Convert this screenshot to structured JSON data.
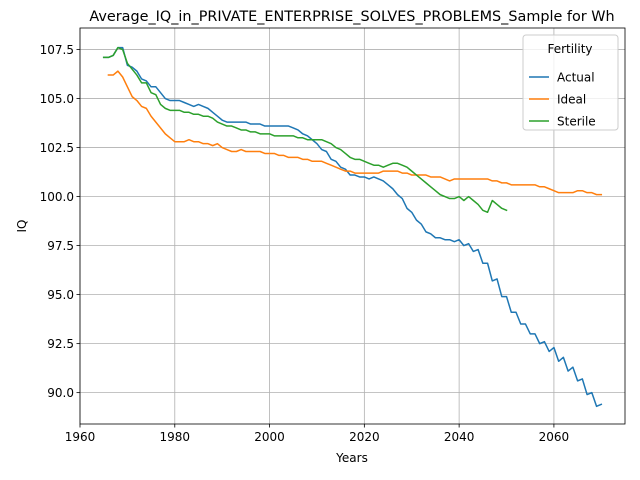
{
  "chart_data": {
    "type": "line",
    "title": "Average_IQ_in_PRIVATE_ENTERPRISE_SOLVES_PROBLEMS_Sample for Wh",
    "xlabel": "Years",
    "ylabel": "IQ",
    "xlim": [
      1960,
      2075
    ],
    "ylim": [
      88.4,
      108.6
    ],
    "xticks": [
      1960,
      1980,
      2000,
      2020,
      2040,
      2060
    ],
    "xtick_labels": [
      "1960",
      "1980",
      "2000",
      "2020",
      "2040",
      "2060"
    ],
    "yticks": [
      90.0,
      92.5,
      95.0,
      97.5,
      100.0,
      102.5,
      105.0,
      107.5
    ],
    "ytick_labels": [
      "90.0",
      "92.5",
      "95.0",
      "97.5",
      "100.0",
      "102.5",
      "105.0",
      "107.5"
    ],
    "grid": true,
    "legend": {
      "title": "Fertility",
      "placement": "top-right"
    },
    "series": [
      {
        "name": "Actual",
        "color": "#1f77b4",
        "x": [
          1965,
          1966,
          1967,
          1968,
          1969,
          1970,
          1971,
          1972,
          1973,
          1974,
          1975,
          1976,
          1977,
          1978,
          1979,
          1980,
          1981,
          1982,
          1983,
          1984,
          1985,
          1986,
          1987,
          1988,
          1989,
          1990,
          1991,
          1992,
          1993,
          1994,
          1995,
          1996,
          1997,
          1998,
          1999,
          2000,
          2001,
          2002,
          2003,
          2004,
          2005,
          2006,
          2007,
          2008,
          2009,
          2010,
          2011,
          2012,
          2013,
          2014,
          2015,
          2016,
          2017,
          2018,
          2019,
          2020,
          2021,
          2022,
          2023,
          2024,
          2025,
          2026,
          2027,
          2028,
          2029,
          2030,
          2031,
          2032,
          2033,
          2034,
          2035,
          2036,
          2037,
          2038,
          2039,
          2040,
          2041,
          2042,
          2043,
          2044,
          2045,
          2046,
          2047,
          2048,
          2049,
          2050,
          2051,
          2052,
          2053,
          2054,
          2055,
          2056,
          2057,
          2058,
          2059,
          2060,
          2061,
          2062,
          2063,
          2064,
          2065,
          2066,
          2067,
          2068,
          2069,
          2070
        ],
        "y": [
          107.1,
          107.1,
          107.2,
          107.6,
          107.6,
          106.7,
          106.6,
          106.4,
          106.0,
          105.9,
          105.6,
          105.6,
          105.3,
          105.0,
          104.9,
          104.9,
          104.9,
          104.8,
          104.7,
          104.6,
          104.7,
          104.6,
          104.5,
          104.3,
          104.1,
          103.9,
          103.8,
          103.8,
          103.8,
          103.8,
          103.8,
          103.7,
          103.7,
          103.7,
          103.6,
          103.6,
          103.6,
          103.6,
          103.6,
          103.6,
          103.5,
          103.4,
          103.2,
          103.1,
          102.9,
          102.7,
          102.4,
          102.3,
          101.9,
          101.8,
          101.5,
          101.4,
          101.1,
          101.1,
          101.0,
          101.0,
          100.9,
          101.0,
          100.9,
          100.8,
          100.6,
          100.4,
          100.1,
          99.9,
          99.4,
          99.2,
          98.8,
          98.6,
          98.2,
          98.1,
          97.9,
          97.9,
          97.8,
          97.8,
          97.7,
          97.8,
          97.5,
          97.6,
          97.2,
          97.3,
          96.6,
          96.6,
          95.7,
          95.8,
          94.9,
          94.9,
          94.1,
          94.1,
          93.5,
          93.5,
          93.0,
          93.0,
          92.5,
          92.6,
          92.1,
          92.3,
          91.6,
          91.8,
          91.1,
          91.3,
          90.6,
          90.7,
          89.9,
          90.0,
          89.3,
          89.4
        ]
      },
      {
        "name": "Ideal",
        "color": "#ff7f0e",
        "x": [
          1966,
          1967,
          1968,
          1969,
          1970,
          1971,
          1972,
          1973,
          1974,
          1975,
          1976,
          1977,
          1978,
          1979,
          1980,
          1981,
          1982,
          1983,
          1984,
          1985,
          1986,
          1987,
          1988,
          1989,
          1990,
          1991,
          1992,
          1993,
          1994,
          1995,
          1996,
          1997,
          1998,
          1999,
          2000,
          2001,
          2002,
          2003,
          2004,
          2005,
          2006,
          2007,
          2008,
          2009,
          2010,
          2011,
          2012,
          2013,
          2014,
          2015,
          2016,
          2017,
          2018,
          2019,
          2020,
          2021,
          2022,
          2023,
          2024,
          2025,
          2026,
          2027,
          2028,
          2029,
          2030,
          2031,
          2032,
          2033,
          2034,
          2035,
          2036,
          2037,
          2038,
          2039,
          2040,
          2041,
          2042,
          2043,
          2044,
          2045,
          2046,
          2047,
          2048,
          2049,
          2050,
          2051,
          2052,
          2053,
          2054,
          2055,
          2056,
          2057,
          2058,
          2059,
          2060,
          2061,
          2062,
          2063,
          2064,
          2065,
          2066,
          2067,
          2068,
          2069,
          2070
        ],
        "y": [
          106.2,
          106.2,
          106.4,
          106.1,
          105.6,
          105.1,
          104.9,
          104.6,
          104.5,
          104.1,
          103.8,
          103.5,
          103.2,
          103.0,
          102.8,
          102.8,
          102.8,
          102.9,
          102.8,
          102.8,
          102.7,
          102.7,
          102.6,
          102.7,
          102.5,
          102.4,
          102.3,
          102.3,
          102.4,
          102.3,
          102.3,
          102.3,
          102.3,
          102.2,
          102.2,
          102.2,
          102.1,
          102.1,
          102.0,
          102.0,
          102.0,
          101.9,
          101.9,
          101.8,
          101.8,
          101.8,
          101.7,
          101.6,
          101.5,
          101.4,
          101.3,
          101.3,
          101.2,
          101.2,
          101.2,
          101.2,
          101.2,
          101.2,
          101.3,
          101.3,
          101.3,
          101.3,
          101.2,
          101.2,
          101.1,
          101.1,
          101.1,
          101.1,
          101.0,
          101.0,
          101.0,
          100.9,
          100.8,
          100.9,
          100.9,
          100.9,
          100.9,
          100.9,
          100.9,
          100.9,
          100.9,
          100.8,
          100.8,
          100.7,
          100.7,
          100.6,
          100.6,
          100.6,
          100.6,
          100.6,
          100.6,
          100.5,
          100.5,
          100.4,
          100.3,
          100.2,
          100.2,
          100.2,
          100.2,
          100.3,
          100.3,
          100.2,
          100.2,
          100.1,
          100.1
        ]
      },
      {
        "name": "Sterile",
        "color": "#2ca02c",
        "x": [
          1965,
          1966,
          1967,
          1968,
          1969,
          1970,
          1971,
          1972,
          1973,
          1974,
          1975,
          1976,
          1977,
          1978,
          1979,
          1980,
          1981,
          1982,
          1983,
          1984,
          1985,
          1986,
          1987,
          1988,
          1989,
          1990,
          1991,
          1992,
          1993,
          1994,
          1995,
          1996,
          1997,
          1998,
          1999,
          2000,
          2001,
          2002,
          2003,
          2004,
          2005,
          2006,
          2007,
          2008,
          2009,
          2010,
          2011,
          2012,
          2013,
          2014,
          2015,
          2016,
          2017,
          2018,
          2019,
          2020,
          2021,
          2022,
          2023,
          2024,
          2025,
          2026,
          2027,
          2028,
          2029,
          2030,
          2031,
          2032,
          2033,
          2034,
          2035,
          2036,
          2037,
          2038,
          2039,
          2040,
          2041,
          2042,
          2043,
          2044,
          2045,
          2046,
          2047,
          2048,
          2049,
          2050
        ],
        "y": [
          107.1,
          107.1,
          107.2,
          107.6,
          107.5,
          106.8,
          106.5,
          106.2,
          105.8,
          105.8,
          105.3,
          105.2,
          104.7,
          104.5,
          104.4,
          104.4,
          104.4,
          104.3,
          104.3,
          104.2,
          104.2,
          104.1,
          104.1,
          104.0,
          103.8,
          103.7,
          103.6,
          103.6,
          103.5,
          103.4,
          103.4,
          103.3,
          103.3,
          103.2,
          103.2,
          103.2,
          103.1,
          103.1,
          103.1,
          103.1,
          103.1,
          103.0,
          103.0,
          102.9,
          102.9,
          102.9,
          102.9,
          102.8,
          102.7,
          102.5,
          102.4,
          102.2,
          102.0,
          101.9,
          101.9,
          101.8,
          101.7,
          101.6,
          101.6,
          101.5,
          101.6,
          101.7,
          101.7,
          101.6,
          101.5,
          101.3,
          101.1,
          100.9,
          100.7,
          100.5,
          100.3,
          100.1,
          100.0,
          99.9,
          99.9,
          100.0,
          99.8,
          100.0,
          99.8,
          99.6,
          99.3,
          99.2,
          99.8,
          99.6,
          99.4,
          99.3
        ]
      }
    ]
  }
}
